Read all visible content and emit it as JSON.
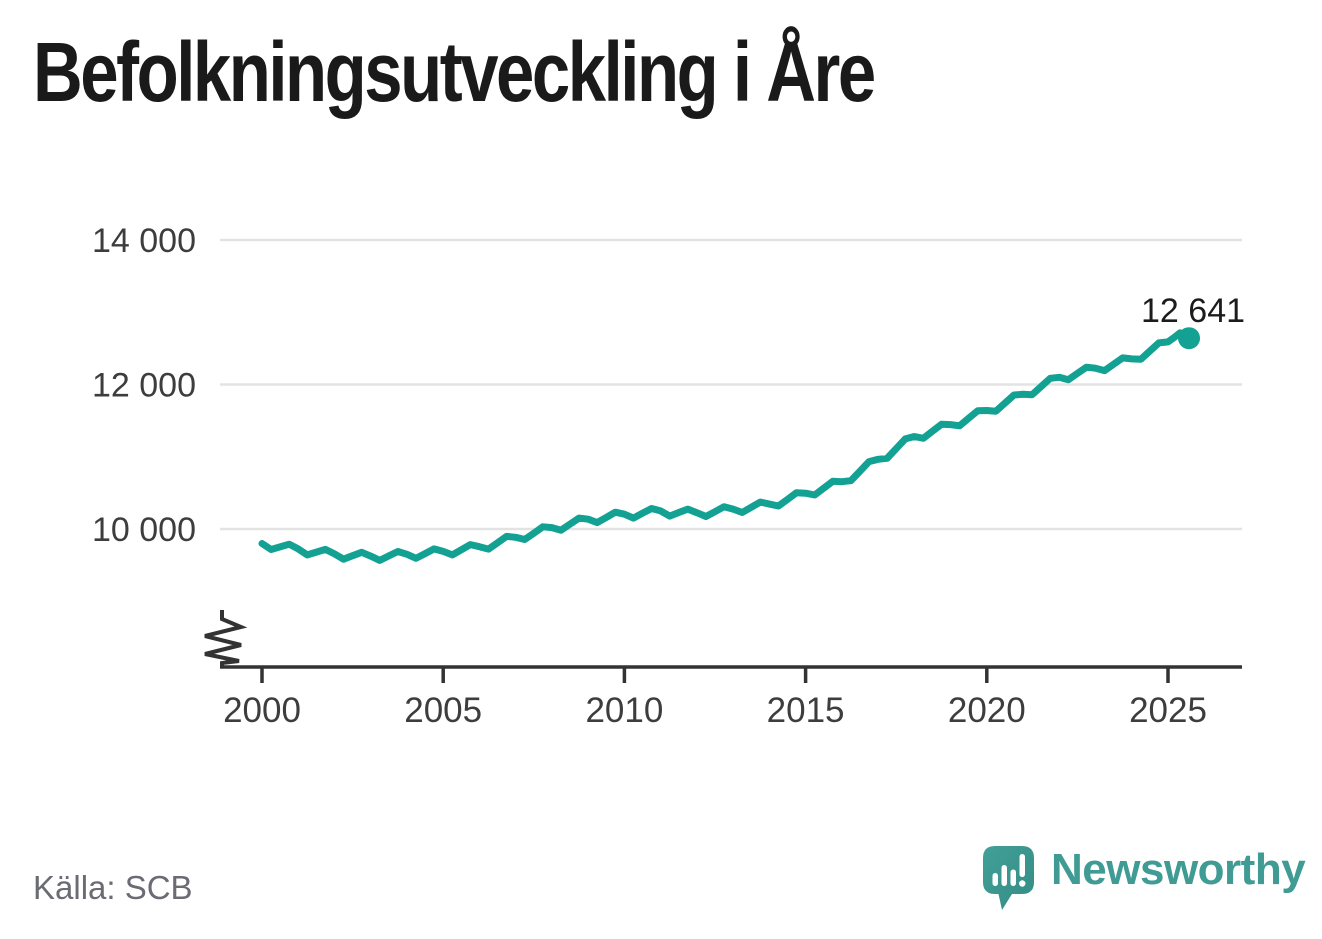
{
  "header": {
    "title": "Befolkningsutveckling i Åre"
  },
  "footer": {
    "source": "Källa: SCB",
    "branding": "Newsworthy"
  },
  "colors": {
    "line": "#12a192",
    "grid": "#e3e3e3",
    "axis": "#333333",
    "axis_text": "#3d3d3d",
    "annotation_text": "#1c1c1c",
    "logo_teal": "#3f9b94",
    "logo_teal_dark": "#358b84",
    "title_text": "#1a1a1a",
    "source_text": "#6b6b74"
  },
  "chart_data": {
    "type": "line",
    "title": "Befolkningsutveckling i Åre",
    "source": "Källa: SCB",
    "xlabel": "",
    "ylabel": "",
    "legend": "none",
    "grid": "horizontal-only",
    "axis_break_bottom_left": true,
    "xlim": [
      1999.8,
      2027.0
    ],
    "ylim_displayed": [
      9300,
      14000
    ],
    "x_ticks": [
      {
        "value": 2000,
        "label": "2000"
      },
      {
        "value": 2005,
        "label": "2005"
      },
      {
        "value": 2010,
        "label": "2010"
      },
      {
        "value": 2015,
        "label": "2015"
      },
      {
        "value": 2020,
        "label": "2020"
      },
      {
        "value": 2025,
        "label": "2025"
      }
    ],
    "y_gridlines": [
      {
        "value": 10000,
        "label": "10 000"
      },
      {
        "value": 12000,
        "label": "12 000"
      },
      {
        "value": 14000,
        "label": "14 000"
      }
    ],
    "end_point": {
      "x": 2025.58,
      "value": 12641,
      "label": "12 641"
    },
    "points": [
      [
        2000.0,
        9800
      ],
      [
        2000.25,
        9716
      ],
      [
        2000.5,
        9752
      ],
      [
        2000.75,
        9789
      ],
      [
        2001.0,
        9725
      ],
      [
        2001.25,
        9642
      ],
      [
        2001.5,
        9680
      ],
      [
        2001.75,
        9718
      ],
      [
        2002.0,
        9655
      ],
      [
        2002.25,
        9582
      ],
      [
        2002.5,
        9630
      ],
      [
        2002.75,
        9677
      ],
      [
        2003.0,
        9625
      ],
      [
        2003.25,
        9566
      ],
      [
        2003.5,
        9627
      ],
      [
        2003.75,
        9689
      ],
      [
        2004.0,
        9650
      ],
      [
        2004.25,
        9595
      ],
      [
        2004.5,
        9660
      ],
      [
        2004.75,
        9725
      ],
      [
        2005.0,
        9690
      ],
      [
        2005.25,
        9641
      ],
      [
        2005.5,
        9712
      ],
      [
        2005.75,
        9784
      ],
      [
        2006.0,
        9755
      ],
      [
        2006.25,
        9722
      ],
      [
        2006.5,
        9810
      ],
      [
        2006.75,
        9898
      ],
      [
        2007.0,
        9885
      ],
      [
        2007.25,
        9854
      ],
      [
        2007.5,
        9942
      ],
      [
        2007.75,
        10031
      ],
      [
        2008.0,
        10020
      ],
      [
        2008.25,
        9984
      ],
      [
        2008.5,
        10068
      ],
      [
        2008.75,
        10151
      ],
      [
        2009.0,
        10135
      ],
      [
        2009.25,
        10088
      ],
      [
        2009.5,
        10160
      ],
      [
        2009.75,
        10233
      ],
      [
        2010.0,
        10205
      ],
      [
        2010.25,
        10151
      ],
      [
        2010.5,
        10218
      ],
      [
        2010.75,
        10284
      ],
      [
        2011.0,
        10250
      ],
      [
        2011.25,
        10179
      ],
      [
        2011.5,
        10228
      ],
      [
        2011.75,
        10276
      ],
      [
        2012.0,
        10225
      ],
      [
        2012.25,
        10173
      ],
      [
        2012.5,
        10240
      ],
      [
        2012.75,
        10308
      ],
      [
        2013.0,
        10275
      ],
      [
        2013.25,
        10228
      ],
      [
        2013.5,
        10300
      ],
      [
        2013.75,
        10373
      ],
      [
        2014.0,
        10345
      ],
      [
        2014.25,
        10318
      ],
      [
        2014.5,
        10410
      ],
      [
        2014.75,
        10503
      ],
      [
        2015.0,
        10495
      ],
      [
        2015.25,
        10470
      ],
      [
        2015.5,
        10565
      ],
      [
        2015.75,
        10660
      ],
      [
        2016.0,
        10655
      ],
      [
        2016.25,
        10668
      ],
      [
        2016.5,
        10800
      ],
      [
        2016.75,
        10933
      ],
      [
        2017.0,
        10965
      ],
      [
        2017.25,
        10979
      ],
      [
        2017.5,
        11113
      ],
      [
        2017.75,
        11247
      ],
      [
        2018.0,
        11280
      ],
      [
        2018.25,
        11256
      ],
      [
        2018.5,
        11353
      ],
      [
        2018.75,
        11449
      ],
      [
        2019.0,
        11445
      ],
      [
        2019.25,
        11429
      ],
      [
        2019.5,
        11533
      ],
      [
        2019.75,
        11636
      ],
      [
        2020.0,
        11640
      ],
      [
        2020.25,
        11631
      ],
      [
        2020.5,
        11743
      ],
      [
        2020.75,
        11854
      ],
      [
        2021.0,
        11865
      ],
      [
        2021.25,
        11859
      ],
      [
        2021.5,
        11973
      ],
      [
        2021.75,
        12086
      ],
      [
        2022.0,
        12100
      ],
      [
        2022.25,
        12066
      ],
      [
        2022.5,
        12153
      ],
      [
        2022.75,
        12239
      ],
      [
        2023.0,
        12225
      ],
      [
        2023.25,
        12193
      ],
      [
        2023.5,
        12280
      ],
      [
        2023.75,
        12368
      ],
      [
        2024.0,
        12355
      ],
      [
        2024.25,
        12349
      ],
      [
        2024.5,
        12463
      ],
      [
        2024.75,
        12576
      ],
      [
        2025.0,
        12590
      ],
      [
        2025.17,
        12650
      ],
      [
        2025.33,
        12715
      ],
      [
        2025.58,
        12641
      ]
    ]
  }
}
